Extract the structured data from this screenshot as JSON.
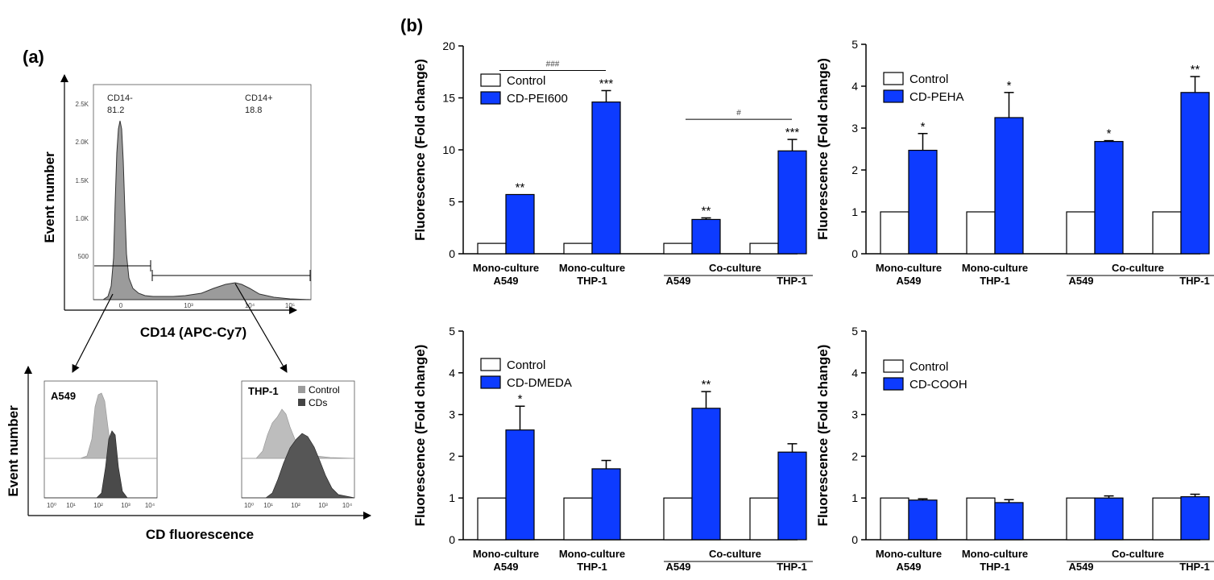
{
  "panel_labels": {
    "a": "(a)",
    "b": "(b)"
  },
  "flow_main": {
    "y_title": "Event number",
    "x_title": "CD14 (APC-Cy7)",
    "y_ticks": [
      "2.5K",
      "2.0K",
      "1.5K",
      "1.0K",
      "500"
    ],
    "x_ticks": [
      "0",
      "10³",
      "10⁴",
      "10⁵"
    ],
    "gate_left": {
      "name": "CD14-",
      "value": "81.2"
    },
    "gate_right": {
      "name": "CD14+",
      "value": "18.8"
    }
  },
  "flow_sub": {
    "y_title": "Event number",
    "x_title": "CD fluorescence",
    "x_ticks": [
      "10⁰",
      "10¹",
      "10²",
      "10³",
      "10⁴"
    ],
    "left_title": "A549",
    "right_title": "THP-1",
    "legend": [
      "Control",
      "CDs"
    ]
  },
  "common": {
    "y_title": "Fluorescence (Fold change)",
    "group_labels": [
      {
        "line1": "Mono-culture",
        "line2": "A549"
      },
      {
        "line1": "Mono-culture",
        "line2": "THP-1"
      },
      {
        "line1": "Co-culture",
        "sub1": "A549",
        "sub2": "THP-1"
      }
    ],
    "control_label": "Control"
  },
  "chart_data": [
    {
      "type": "bar",
      "title": "",
      "ylabel": "Fluorescence (Fold change)",
      "ylim": [
        0,
        20
      ],
      "yticks": [
        0,
        5,
        10,
        15,
        20
      ],
      "categories": [
        "Mono-culture A549",
        "Mono-culture THP-1",
        "Co-culture A549",
        "Co-culture THP-1"
      ],
      "series": [
        {
          "name": "Control",
          "values": [
            1,
            1,
            1,
            1
          ]
        },
        {
          "name": "CD-PEI600",
          "values": [
            5.7,
            14.6,
            3.3,
            9.9
          ],
          "errors": [
            0,
            1.1,
            0.15,
            1.1
          ]
        }
      ],
      "significance": [
        "**",
        "***",
        "**",
        "***"
      ],
      "brackets": [
        {
          "from": 0,
          "to": 1,
          "label": "###"
        },
        {
          "from": 2,
          "to": 3,
          "label": "#"
        }
      ]
    },
    {
      "type": "bar",
      "title": "",
      "ylabel": "Fluorescence (Fold change)",
      "ylim": [
        0,
        5
      ],
      "yticks": [
        0,
        1,
        2,
        3,
        4,
        5
      ],
      "categories": [
        "Mono-culture A549",
        "Mono-culture THP-1",
        "Co-culture A549",
        "Co-culture THP-1"
      ],
      "series": [
        {
          "name": "Control",
          "values": [
            1,
            1,
            1,
            1
          ]
        },
        {
          "name": "CD-PEHA",
          "values": [
            2.47,
            3.25,
            2.68,
            3.85
          ],
          "errors": [
            0.4,
            0.6,
            0.02,
            0.38
          ]
        }
      ],
      "significance": [
        "*",
        "*",
        "*",
        "**"
      ],
      "brackets": []
    },
    {
      "type": "bar",
      "title": "",
      "ylabel": "Fluorescence (Fold change)",
      "ylim": [
        0,
        5
      ],
      "yticks": [
        0,
        1,
        2,
        3,
        4,
        5
      ],
      "categories": [
        "Mono-culture A549",
        "Mono-culture THP-1",
        "Co-culture A549",
        "Co-culture THP-1"
      ],
      "series": [
        {
          "name": "Control",
          "values": [
            1,
            1,
            1,
            1
          ]
        },
        {
          "name": "CD-DMEDA",
          "values": [
            2.63,
            1.7,
            3.15,
            2.1
          ],
          "errors": [
            0.57,
            0.2,
            0.4,
            0.2
          ]
        }
      ],
      "significance": [
        "*",
        "",
        "**",
        ""
      ],
      "brackets": []
    },
    {
      "type": "bar",
      "title": "",
      "ylabel": "Fluorescence (Fold change)",
      "ylim": [
        0,
        5
      ],
      "yticks": [
        0,
        1,
        2,
        3,
        4,
        5
      ],
      "categories": [
        "Mono-culture A549",
        "Mono-culture THP-1",
        "Co-culture A549",
        "Co-culture THP-1"
      ],
      "series": [
        {
          "name": "Control",
          "values": [
            1,
            1,
            1,
            1
          ]
        },
        {
          "name": "CD-COOH",
          "values": [
            0.95,
            0.89,
            1.0,
            1.03
          ],
          "errors": [
            0.03,
            0.07,
            0.05,
            0.06
          ]
        }
      ],
      "significance": [
        "",
        "",
        "",
        ""
      ],
      "brackets": []
    }
  ]
}
